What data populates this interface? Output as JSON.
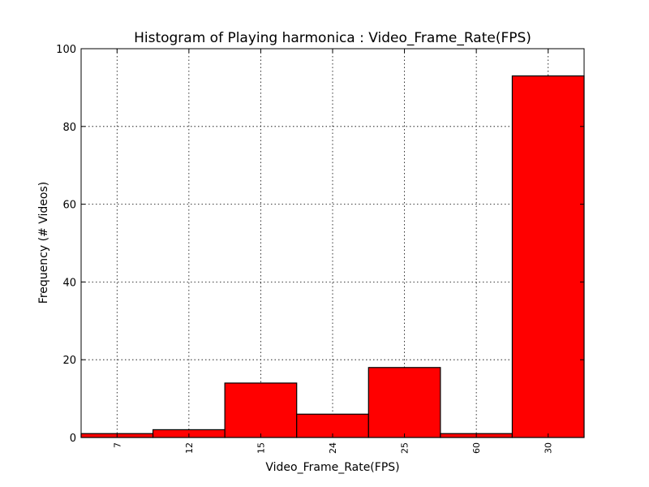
{
  "chart_data": {
    "type": "bar",
    "title": "Histogram of Playing harmonica : Video_Frame_Rate(FPS)",
    "xlabel": "Video_Frame_Rate(FPS)",
    "ylabel": "Frequency (# Videos)",
    "categories": [
      "7",
      "12",
      "15",
      "24",
      "25",
      "60",
      "30"
    ],
    "values": [
      1,
      2,
      14,
      6,
      18,
      1,
      93
    ],
    "ylim": [
      0,
      100
    ],
    "yticks": [
      0,
      20,
      40,
      60,
      80,
      100
    ],
    "grid": true,
    "bar_color": "#ff0000",
    "edge_color": "#000000"
  }
}
